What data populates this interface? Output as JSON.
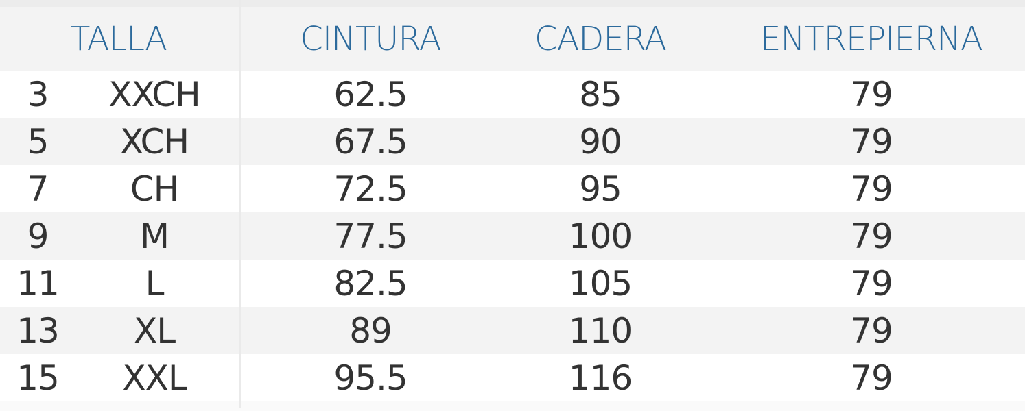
{
  "table": {
    "headers": [
      "TALLA",
      "CINTURA",
      "CADERA",
      "ENTREPIERNA"
    ],
    "rows": [
      {
        "number": "3",
        "size": "XXCH",
        "cintura": "62.5",
        "cadera": "85",
        "entrepierna": "79"
      },
      {
        "number": "5",
        "size": "XCH",
        "cintura": "67.5",
        "cadera": "90",
        "entrepierna": "79"
      },
      {
        "number": "7",
        "size": "CH",
        "cintura": "72.5",
        "cadera": "95",
        "entrepierna": "79"
      },
      {
        "number": "9",
        "size": "M",
        "cintura": "77.5",
        "cadera": "100",
        "entrepierna": "79"
      },
      {
        "number": "11",
        "size": "L",
        "cintura": "82.5",
        "cadera": "105",
        "entrepierna": "79"
      },
      {
        "number": "13",
        "size": "XL",
        "cintura": "89",
        "cadera": "110",
        "entrepierna": "79"
      },
      {
        "number": "15",
        "size": "XXL",
        "cintura": "95.5",
        "cadera": "116",
        "entrepierna": "79"
      }
    ]
  },
  "colors": {
    "header_text": "#2c6a9c",
    "body_text": "#333333",
    "stripe": "#f3f3f3"
  }
}
